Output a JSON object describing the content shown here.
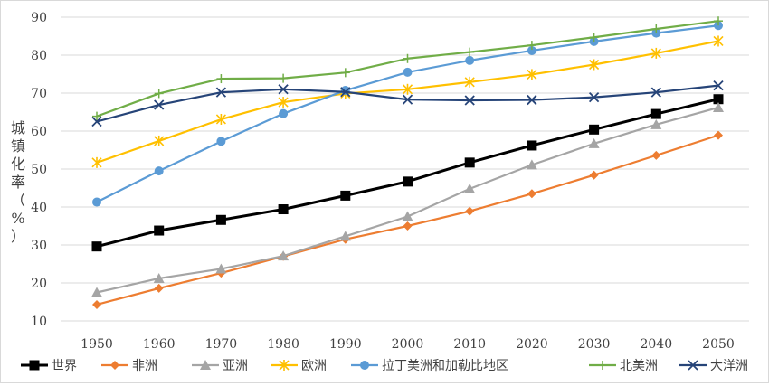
{
  "chart_data": {
    "type": "line",
    "title": "",
    "xlabel": "",
    "ylabel_chars": [
      "城",
      "镇",
      "化",
      "率",
      "（",
      "%",
      "）"
    ],
    "x": [
      1950,
      1960,
      1970,
      1980,
      1990,
      2000,
      2010,
      2020,
      2030,
      2040,
      2050
    ],
    "x_tick_labels": [
      "1950",
      "1960",
      "1970",
      "1980",
      "1990",
      "2000",
      "2010",
      "2020",
      "2030",
      "2040",
      "2050"
    ],
    "ylim": [
      10,
      90
    ],
    "y_ticks": [
      10,
      20,
      30,
      40,
      50,
      60,
      70,
      80,
      90
    ],
    "y_tick_labels": [
      "10",
      "20",
      "30",
      "40",
      "50",
      "60",
      "70",
      "80",
      "90"
    ],
    "grid": "horizontal",
    "legend_position": "bottom",
    "series": [
      {
        "name": "世界",
        "color": "#000000",
        "marker": "square",
        "values": [
          29.6,
          33.8,
          36.6,
          39.4,
          43.0,
          46.7,
          51.7,
          56.2,
          60.4,
          64.5,
          68.4
        ]
      },
      {
        "name": "非洲",
        "color": "#ed7d31",
        "marker": "diamond",
        "values": [
          14.3,
          18.6,
          22.6,
          27.0,
          31.5,
          35.0,
          38.9,
          43.5,
          48.4,
          53.6,
          58.9
        ]
      },
      {
        "name": "亚洲",
        "color": "#a5a5a5",
        "marker": "triangle",
        "values": [
          17.5,
          21.2,
          23.7,
          27.1,
          32.3,
          37.5,
          44.8,
          51.1,
          56.7,
          61.7,
          66.2
        ]
      },
      {
        "name": "欧洲",
        "color": "#ffc000",
        "marker": "asterisk",
        "values": [
          51.7,
          57.4,
          63.1,
          67.6,
          69.9,
          71.0,
          72.9,
          74.9,
          77.5,
          80.5,
          83.7
        ]
      },
      {
        "name": "拉丁美洲和加勒比地区",
        "color": "#5b9bd5",
        "marker": "circle",
        "values": [
          41.3,
          49.5,
          57.3,
          64.6,
          70.7,
          75.5,
          78.6,
          81.2,
          83.6,
          85.8,
          87.8
        ]
      },
      {
        "name": "北美洲",
        "color": "#70ad47",
        "marker": "plus",
        "values": [
          63.9,
          69.9,
          73.8,
          73.9,
          75.4,
          79.1,
          80.8,
          82.6,
          84.7,
          86.9,
          89.0
        ]
      },
      {
        "name": "大洋洲",
        "color": "#264478",
        "marker": "x",
        "values": [
          62.5,
          66.9,
          70.2,
          71.0,
          70.3,
          68.3,
          68.1,
          68.2,
          68.9,
          70.2,
          72.0
        ]
      }
    ]
  }
}
